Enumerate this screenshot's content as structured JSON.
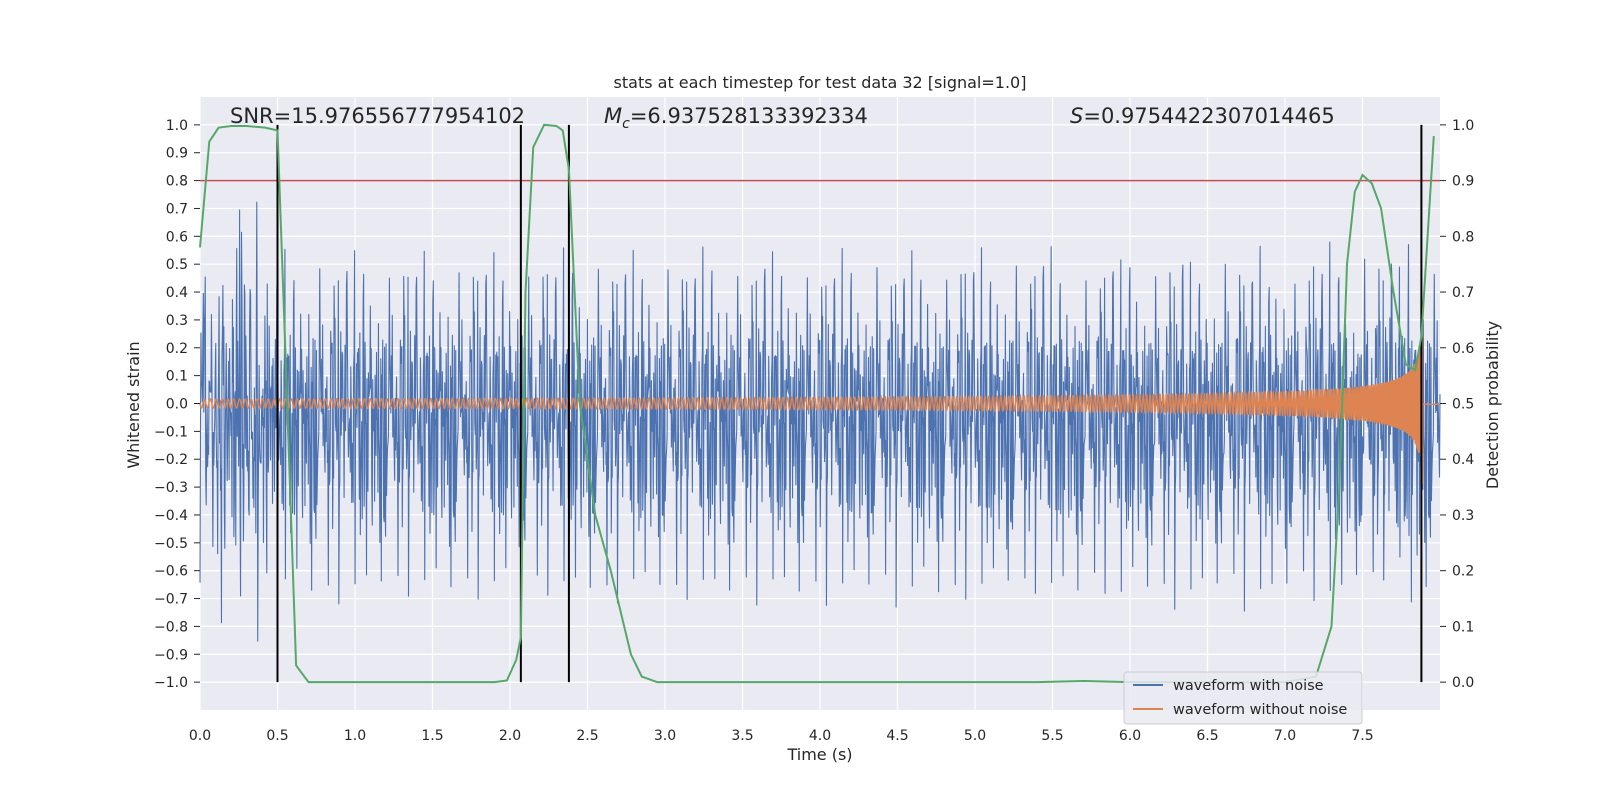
{
  "chart_data": {
    "type": "line",
    "title": "stats at each timestep for test data 32 [signal=1.0]",
    "xlabel": "Time (s)",
    "ylabel": "Whitened strain",
    "ylabel_right": "Detection probability",
    "xlim": [
      0.0,
      8.0
    ],
    "ylim": [
      -1.1,
      1.1
    ],
    "ylim_right": [
      -0.05,
      1.05
    ],
    "x_ticks": [
      "0.0",
      "0.5",
      "1.0",
      "1.5",
      "2.0",
      "2.5",
      "3.0",
      "3.5",
      "4.0",
      "4.5",
      "5.0",
      "5.5",
      "6.0",
      "6.5",
      "7.0",
      "7.5"
    ],
    "y_ticks": [
      "1.0",
      "0.9",
      "0.8",
      "0.7",
      "0.6",
      "0.5",
      "0.4",
      "0.3",
      "0.2",
      "0.1",
      "0.0",
      "−0.1",
      "−0.2",
      "−0.3",
      "−0.4",
      "−0.5",
      "−0.6",
      "−0.7",
      "−0.8",
      "−0.9",
      "−1.0"
    ],
    "y_ticks_right": [
      "1.0",
      "0.9",
      "0.8",
      "0.7",
      "0.6",
      "0.5",
      "0.4",
      "0.3",
      "0.2",
      "0.1",
      "0.0"
    ],
    "annotations": {
      "snr": "SNR=15.976556777954102",
      "mc_symbol": "M",
      "mc_sub": "c",
      "mc_value": "=6.937528133392334",
      "s_symbol": "S",
      "s_value": "=0.9754422307014465"
    },
    "threshold": {
      "value": 0.8,
      "color": "#c44e52"
    },
    "vertical_lines": [
      0.5,
      2.07,
      2.38,
      7.88
    ],
    "series": [
      {
        "name": "waveform with noise",
        "color": "#4c72b0",
        "style": "noise",
        "amplitude": 0.45,
        "seed": 32
      },
      {
        "name": "waveform without noise",
        "color": "#dd8452",
        "style": "chirp",
        "t_merger": 7.9
      },
      {
        "name": "detection probability",
        "color": "#55a868",
        "axis": "right",
        "x": [
          0.0,
          0.06,
          0.12,
          0.2,
          0.3,
          0.42,
          0.5,
          0.55,
          0.62,
          0.7,
          0.8,
          1.0,
          1.5,
          1.9,
          1.98,
          2.04,
          2.07,
          2.1,
          2.15,
          2.22,
          2.3,
          2.34,
          2.38,
          2.45,
          2.55,
          2.65,
          2.78,
          2.85,
          2.95,
          3.5,
          4.5,
          5.4,
          5.7,
          6.0,
          6.5,
          7.0,
          7.2,
          7.3,
          7.35,
          7.4,
          7.45,
          7.5,
          7.56,
          7.62,
          7.7,
          7.78,
          7.84,
          7.88,
          7.92,
          7.96
        ],
        "values": [
          0.78,
          0.97,
          0.995,
          0.998,
          0.998,
          0.995,
          0.99,
          0.6,
          0.03,
          0.0,
          0.0,
          0.0,
          0.0,
          0.0,
          0.003,
          0.04,
          0.08,
          0.7,
          0.96,
          1.0,
          0.998,
          0.99,
          0.92,
          0.5,
          0.3,
          0.2,
          0.05,
          0.01,
          0.0,
          0.0,
          0.0,
          0.0,
          0.002,
          0.0,
          0.0,
          0.0,
          0.01,
          0.1,
          0.35,
          0.75,
          0.88,
          0.91,
          0.895,
          0.85,
          0.7,
          0.57,
          0.56,
          0.62,
          0.8,
          0.98
        ]
      }
    ],
    "legend": {
      "position": "lower-right",
      "entries": [
        "waveform with noise",
        "waveform without noise"
      ]
    },
    "grid": true
  }
}
